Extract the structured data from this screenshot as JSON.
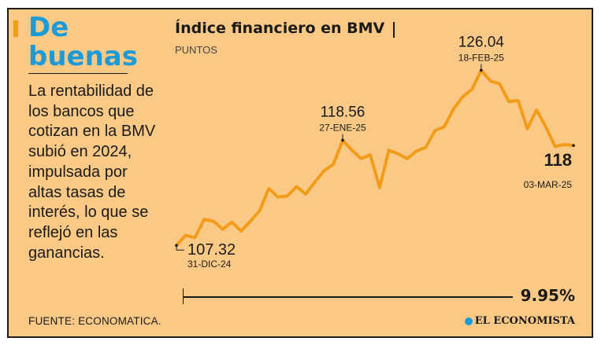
{
  "colors": {
    "card_background": "#fbc986",
    "accent": "#f39c1a",
    "headline": "#1d9bd6",
    "line": "#f39c1a",
    "text": "#1a1a1a"
  },
  "sidebar": {
    "headline_line1": "De",
    "headline_line2": "buenas",
    "body": "La rentabilidad de los bancos que cotizan en la BMV subió en 2024, impulsada por altas tasas de interés, lo que se reflejó en las ganancias."
  },
  "footer": {
    "source": "FUENTE: ECONOMATICA.",
    "brand": "EL ECONOMISTA",
    "brand_icon": "newspaper-logo-icon"
  },
  "progress": {
    "label": "9.95%",
    "percent": 9.95
  },
  "chart_data": {
    "type": "line",
    "title": "Índice financiero en BMV",
    "subtitle": "PUNTOS",
    "xlabel": "",
    "ylabel": "Puntos",
    "ylim": [
      106.5,
      127.0
    ],
    "grid": false,
    "x": [
      "31-DIC-24",
      "",
      "",
      "",
      "",
      "",
      "",
      "",
      "",
      "",
      "",
      "",
      "",
      "",
      "",
      "",
      "",
      "",
      "27-ENE-25",
      "",
      "",
      "",
      "",
      "",
      "",
      "",
      "",
      "",
      "",
      "",
      "",
      "",
      "",
      "18-FEB-25",
      "",
      "",
      "",
      "",
      "",
      "",
      "",
      "",
      "",
      "03-MAR-25"
    ],
    "values": [
      107.32,
      108.4,
      108.15,
      110.1,
      109.9,
      109.05,
      109.8,
      108.85,
      109.9,
      111.0,
      113.4,
      112.5,
      112.6,
      113.6,
      112.8,
      114.1,
      115.3,
      116.0,
      118.56,
      117.5,
      116.6,
      117.0,
      113.5,
      117.5,
      117.1,
      116.6,
      117.4,
      117.8,
      119.6,
      120.0,
      121.9,
      123.2,
      124.0,
      126.04,
      124.9,
      124.6,
      122.7,
      122.8,
      119.8,
      121.8,
      120.0,
      117.9,
      118.1,
      118.0
    ],
    "annotations": [
      {
        "index": 0,
        "value_label": "107.32",
        "date_label": "31-DIC-24"
      },
      {
        "index": 18,
        "value_label": "118.56",
        "date_label": "27-ENE-25"
      },
      {
        "index": 33,
        "value_label": "126.04",
        "date_label": "18-FEB-25"
      },
      {
        "index": 43,
        "value_label": "118",
        "date_label": "03-MAR-25"
      }
    ]
  }
}
